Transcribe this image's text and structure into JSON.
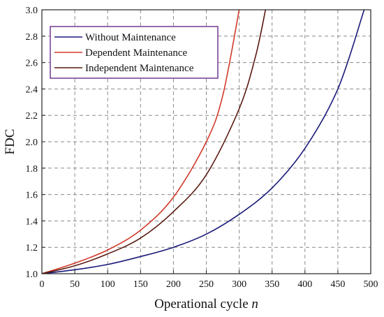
{
  "chart_data": {
    "type": "line",
    "title": "",
    "xlabel": "Operational cycle",
    "xlabel_italic_symbol": "n",
    "ylabel": "FDC",
    "xlim": [
      0,
      500
    ],
    "ylim": [
      1.0,
      3.0
    ],
    "grid": true,
    "legend_position": "top-left",
    "x_ticks": [
      "0",
      "50",
      "100",
      "150",
      "200",
      "250",
      "300",
      "350",
      "400",
      "450",
      "500"
    ],
    "y_ticks": [
      "1.0",
      "1.2",
      "1.4",
      "1.6",
      "1.8",
      "2.0",
      "2.2",
      "2.4",
      "2.6",
      "2.8",
      "3.0"
    ],
    "series": [
      {
        "name": "Without Maintenance",
        "color": "#1a1a7a",
        "x": [
          0,
          50,
          100,
          150,
          200,
          250,
          300,
          350,
          400,
          450,
          490
        ],
        "y": [
          1.0,
          1.03,
          1.07,
          1.13,
          1.2,
          1.3,
          1.45,
          1.65,
          1.95,
          2.4,
          3.0
        ]
      },
      {
        "name": "Dependent Maintenance",
        "color": "#d13a2a",
        "x": [
          0,
          50,
          100,
          150,
          200,
          250,
          275,
          300
        ],
        "y": [
          1.0,
          1.08,
          1.18,
          1.33,
          1.58,
          2.0,
          2.35,
          3.0
        ]
      },
      {
        "name": "Independent Maintenance",
        "color": "#5a1a12",
        "x": [
          0,
          50,
          100,
          150,
          200,
          250,
          300,
          325,
          340
        ],
        "y": [
          1.0,
          1.06,
          1.15,
          1.27,
          1.47,
          1.75,
          2.25,
          2.65,
          3.0
        ]
      }
    ]
  }
}
